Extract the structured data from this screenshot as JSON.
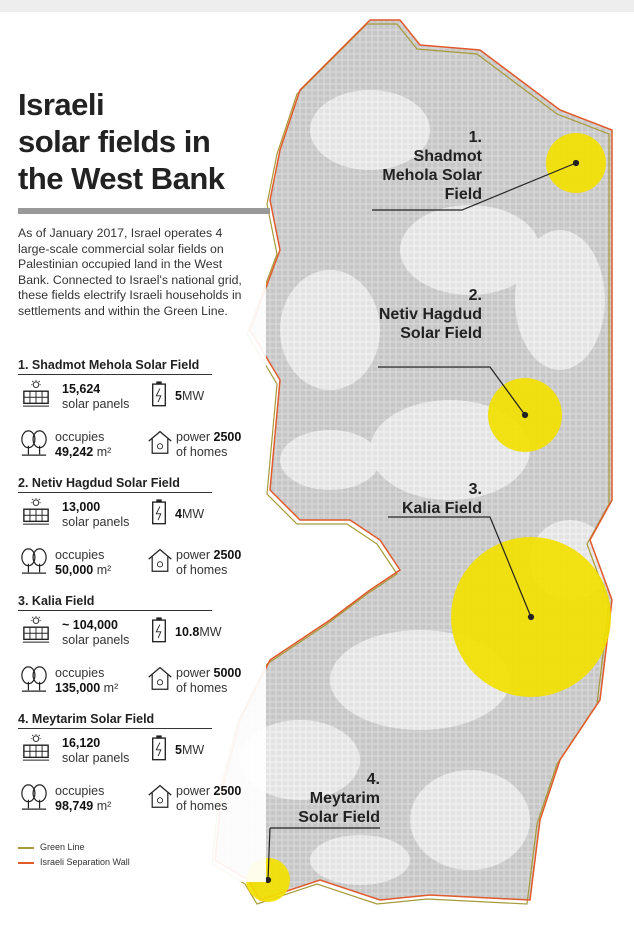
{
  "title_lines": [
    "Israeli",
    "solar fields in",
    "the West Bank"
  ],
  "intro": "As of January 2017, Israel operates 4 large-scale commercial solar fields on Palestinian occupied land in the West Bank. Connected to Israel's national grid, these fields electrify Israeli households in settlements and within the Green Line.",
  "labels": {
    "solar_panels": "solar panels",
    "occupies": "occupies",
    "power": "power",
    "of_homes": "of homes"
  },
  "fields": [
    {
      "number": "1.",
      "name": "Shadmot Mehola Solar Field",
      "panels": "15,624",
      "capacity": "5",
      "unit": "MW",
      "area": "49,242",
      "area_unit": "m²",
      "homes": "2500"
    },
    {
      "number": "2.",
      "name": "Netiv Hagdud Solar Field",
      "panels": "13,000",
      "capacity": "4",
      "unit": "MW",
      "area": "50,000",
      "area_unit": "m²",
      "homes": "2500"
    },
    {
      "number": "3.",
      "name": "Kalia Field",
      "panels": "~ 104,000",
      "capacity": "10.8",
      "unit": "MW",
      "area": "135,000",
      "area_unit": "m²",
      "homes": "5000"
    },
    {
      "number": "4.",
      "name": "Meytarim Solar Field",
      "panels": "16,120",
      "capacity": "5",
      "unit": "MW",
      "area": "98,749",
      "area_unit": "m²",
      "homes": "2500"
    }
  ],
  "legend": {
    "green_line": "Green Line",
    "separation_wall": "Israeli Separation Wall"
  }
}
